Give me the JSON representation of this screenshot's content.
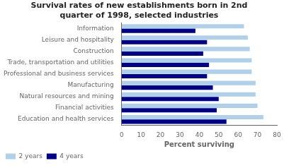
{
  "chart_data": {
    "type": "bar",
    "orientation": "horizontal",
    "title": "Survival rates of new establishments born in 2nd\nquarter of 1998, selected industries",
    "categories": [
      "Education and health services",
      "Financial activities",
      "Natural resources and mining",
      "Manufacturing",
      "Professional and business services",
      "Trade, transportation and utilities",
      "Construction",
      "Leisure and hospitality",
      "Information"
    ],
    "series": [
      {
        "name": "2 years",
        "color": "#b0cfe8",
        "values": [
          73,
          70,
          69,
          69,
          67,
          67,
          66,
          65,
          63
        ]
      },
      {
        "name": "4 years",
        "color": "#00008b",
        "values": [
          54,
          49,
          50,
          47,
          44,
          45,
          42,
          44,
          38
        ]
      }
    ],
    "xlabel": "Percent surviving",
    "xlim": [
      0,
      80
    ],
    "xticks": [
      0,
      10,
      20,
      30,
      40,
      50,
      60,
      70,
      80
    ],
    "grid": false,
    "legend": "lower left"
  }
}
